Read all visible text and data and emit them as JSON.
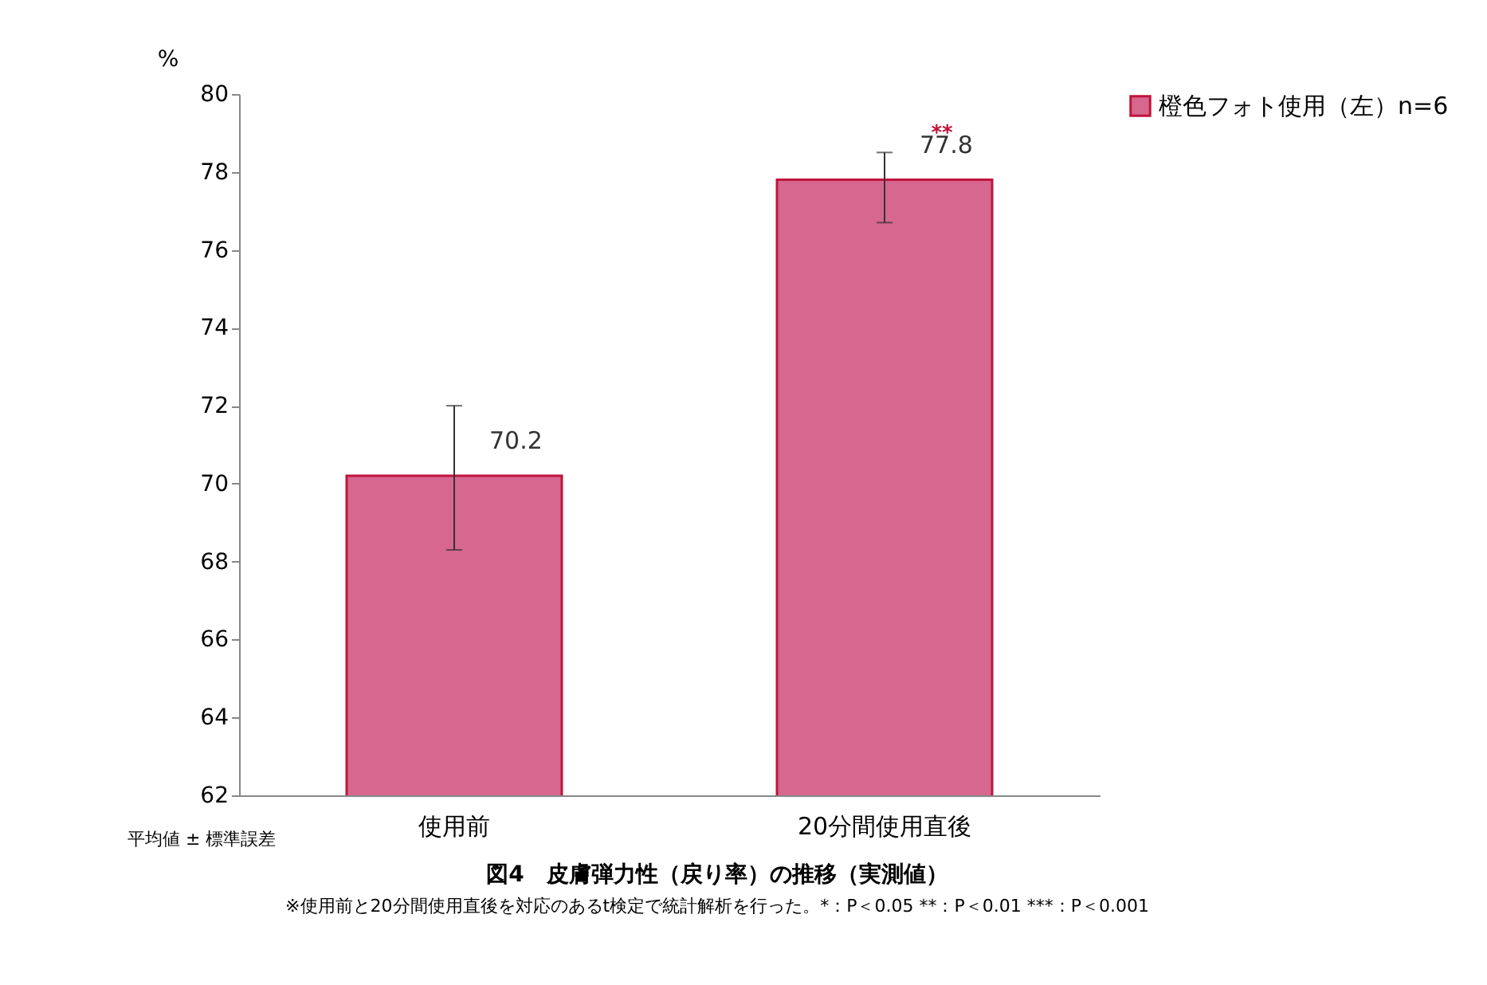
{
  "chart_data": {
    "type": "bar",
    "title": "図4　皮膚弾力性（戻り率）の推移（実測値）",
    "ylabel": "%",
    "categories": [
      "使用前",
      "20分間使用直後"
    ],
    "series": [
      {
        "name": "橙色フォト使用（左）n=6",
        "color": "#d6678f",
        "values": [
          70.2,
          77.8
        ],
        "errors": [
          [
            68.3,
            72.0
          ],
          [
            76.7,
            78.5
          ]
        ]
      }
    ],
    "data_labels": true,
    "ylim": [
      62,
      80
    ],
    "yticks": [
      62,
      64,
      66,
      68,
      70,
      72,
      74,
      76,
      78,
      80
    ],
    "grid": false,
    "legend": "right",
    "annotations": [
      "**",
      "平均値 ± 標準誤差",
      "※使用前と20分間使用直後を対応のあるt検定で統計解析を行った。*：P＜0.05 **：P＜0.01 ***：P＜0.001"
    ]
  }
}
